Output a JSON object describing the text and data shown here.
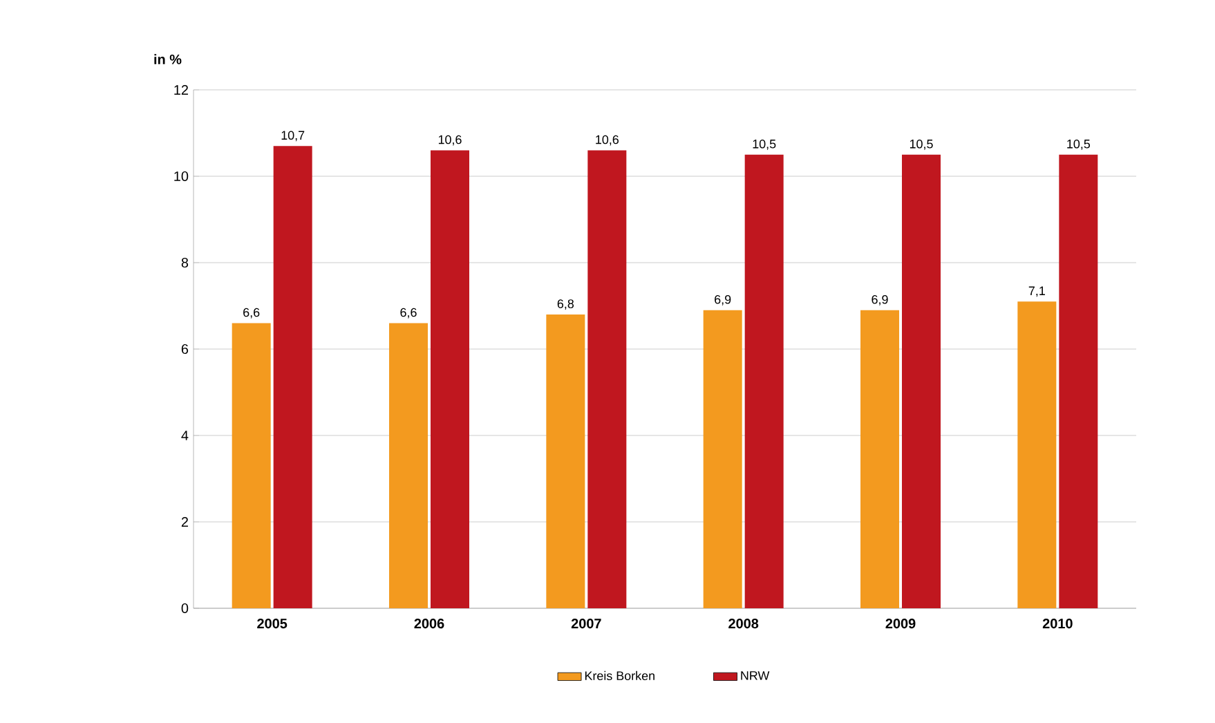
{
  "chart_data": {
    "type": "bar",
    "ylabel": "in %",
    "categories": [
      "2005",
      "2006",
      "2007",
      "2008",
      "2009",
      "2010"
    ],
    "series": [
      {
        "name": "Kreis Borken",
        "color": "#f39a1f",
        "values": [
          6.6,
          6.6,
          6.8,
          6.9,
          6.9,
          7.1
        ],
        "value_labels": [
          "6,6",
          "6,6",
          "6,8",
          "6,9",
          "6,9",
          "7,1"
        ]
      },
      {
        "name": "NRW",
        "color": "#c0171f",
        "values": [
          10.7,
          10.6,
          10.6,
          10.5,
          10.5,
          10.5
        ],
        "value_labels": [
          "10,7",
          "10,6",
          "10,6",
          "10,5",
          "10,5",
          "10,5"
        ]
      }
    ],
    "ylim": [
      0,
      12
    ],
    "yticks": [
      0,
      2,
      4,
      6,
      8,
      10,
      12
    ],
    "grid": "y",
    "legend": "bottom"
  }
}
